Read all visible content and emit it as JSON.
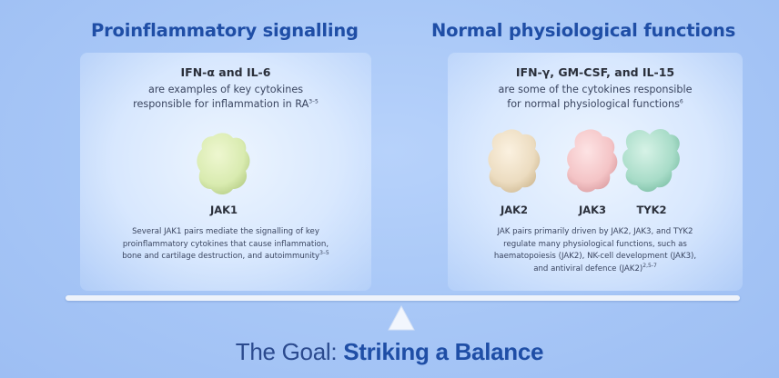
{
  "left": {
    "heading": "Proinflammatory signalling",
    "cytokine_title": "IFN-α and IL-6",
    "cytokine_sub_line1": "are examples of key cytokines",
    "cytokine_sub_line2": "responsible for inflammation in RA",
    "cytokine_sub_ref": "3–5",
    "jaks": [
      {
        "label": "JAK1",
        "icon": "jak1-protein-icon",
        "color": "#d9ebb0"
      }
    ],
    "desc_line1": "Several JAK1 pairs mediate the signalling of key",
    "desc_line2": "proinflammatory cytokines that cause inflammation,",
    "desc_line3": "bone and cartilage destruction, and autoimmunity",
    "desc_ref": "3–5"
  },
  "right": {
    "heading": "Normal physiological functions",
    "cytokine_title": "IFN-γ, GM-CSF, and IL-15",
    "cytokine_sub_line1": "are some of the cytokines responsible",
    "cytokine_sub_line2": "for normal physiological functions",
    "cytokine_sub_ref": "6",
    "jaks": [
      {
        "label": "JAK2",
        "icon": "jak2-protein-icon",
        "color": "#ecdcc0"
      },
      {
        "label": "JAK3",
        "icon": "jak3-protein-icon",
        "color": "#f4c4c6"
      },
      {
        "label": "TYK2",
        "icon": "tyk2-protein-icon",
        "color": "#a8dcc8"
      }
    ],
    "desc_line1": "JAK pairs primarily driven by JAK2, JAK3, and TYK2",
    "desc_line2": "regulate many physiological functions, such as",
    "desc_line3": "haematopoiesis (JAK2), NK-cell development (JAK3),",
    "desc_line4": "and antiviral defence (JAK2)",
    "desc_ref": "2,5-7"
  },
  "goal": {
    "prefix": "The Goal: ",
    "emphasis": "Striking a Balance"
  }
}
